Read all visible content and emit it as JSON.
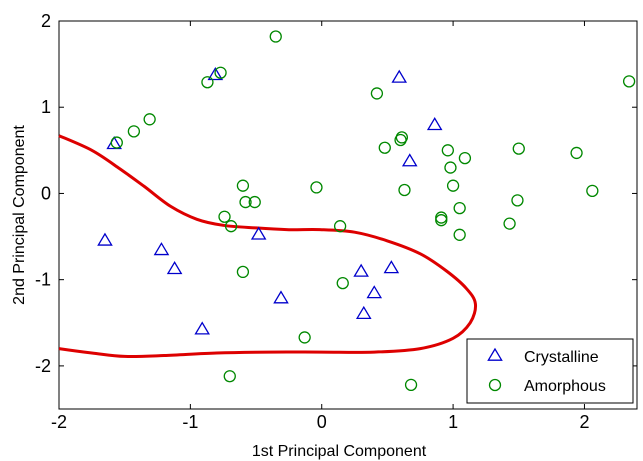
{
  "chart_data": {
    "type": "scatter",
    "title": "",
    "xlabel": "1st Principal Component",
    "ylabel": "2nd Principal Component",
    "xlim": [
      -2,
      2.4
    ],
    "ylim": [
      -2.5,
      2
    ],
    "xticks": [
      "-2",
      "-1",
      "0",
      "1",
      "2"
    ],
    "xtick_values": [
      -2,
      -1,
      0,
      1,
      2
    ],
    "yticks": [
      "-2",
      "-1",
      "0",
      "1",
      "2"
    ],
    "ytick_values": [
      -2,
      -1,
      0,
      1,
      2
    ],
    "grid": false,
    "legend_position": "bottom-right",
    "series": [
      {
        "name": "Crystalline",
        "marker": "triangle",
        "color": "#0000cc",
        "points": [
          [
            -1.65,
            -0.55
          ],
          [
            -1.58,
            0.57
          ],
          [
            -1.22,
            -0.66
          ],
          [
            -1.12,
            -0.88
          ],
          [
            -0.91,
            -1.58
          ],
          [
            -0.81,
            1.37
          ],
          [
            -0.48,
            -0.48
          ],
          [
            -0.31,
            -1.22
          ],
          [
            0.3,
            -0.91
          ],
          [
            0.32,
            -1.4
          ],
          [
            0.4,
            -1.16
          ],
          [
            0.53,
            -0.87
          ],
          [
            0.59,
            1.34
          ],
          [
            0.67,
            0.37
          ],
          [
            0.86,
            0.79
          ]
        ]
      },
      {
        "name": "Amorphous",
        "marker": "circle",
        "color": "#008800",
        "points": [
          [
            -1.56,
            0.59
          ],
          [
            -1.43,
            0.72
          ],
          [
            -1.31,
            0.86
          ],
          [
            -0.87,
            1.29
          ],
          [
            -0.77,
            1.4
          ],
          [
            -0.74,
            -0.27
          ],
          [
            -0.7,
            -2.12
          ],
          [
            -0.69,
            -0.38
          ],
          [
            -0.6,
            -0.91
          ],
          [
            -0.6,
            0.09
          ],
          [
            -0.58,
            -0.1
          ],
          [
            -0.51,
            -0.1
          ],
          [
            -0.35,
            1.82
          ],
          [
            -0.13,
            -1.67
          ],
          [
            -0.04,
            0.07
          ],
          [
            0.14,
            -0.38
          ],
          [
            0.16,
            -1.04
          ],
          [
            0.42,
            1.16
          ],
          [
            0.48,
            0.53
          ],
          [
            0.6,
            0.62
          ],
          [
            0.61,
            0.65
          ],
          [
            0.63,
            0.04
          ],
          [
            0.68,
            -2.22
          ],
          [
            0.91,
            -0.31
          ],
          [
            0.91,
            -0.28
          ],
          [
            0.96,
            0.5
          ],
          [
            0.98,
            0.3
          ],
          [
            1.0,
            0.09
          ],
          [
            1.05,
            -0.48
          ],
          [
            1.05,
            -0.17
          ],
          [
            1.09,
            0.41
          ],
          [
            1.43,
            -0.35
          ],
          [
            1.49,
            -0.08
          ],
          [
            1.5,
            0.52
          ],
          [
            1.94,
            0.47
          ],
          [
            2.06,
            0.03
          ],
          [
            2.34,
            1.3
          ]
        ]
      }
    ],
    "boundary": {
      "color": "#dd0000",
      "points": [
        [
          -2.0,
          0.67
        ],
        [
          -1.75,
          0.5
        ],
        [
          -1.55,
          0.3
        ],
        [
          -1.35,
          0.08
        ],
        [
          -1.15,
          -0.15
        ],
        [
          -0.95,
          -0.3
        ],
        [
          -0.75,
          -0.37
        ],
        [
          -0.5,
          -0.4
        ],
        [
          -0.25,
          -0.42
        ],
        [
          0.0,
          -0.42
        ],
        [
          0.25,
          -0.45
        ],
        [
          0.5,
          -0.55
        ],
        [
          0.75,
          -0.7
        ],
        [
          0.95,
          -0.9
        ],
        [
          1.1,
          -1.1
        ],
        [
          1.17,
          -1.28
        ],
        [
          1.13,
          -1.5
        ],
        [
          1.0,
          -1.68
        ],
        [
          0.75,
          -1.8
        ],
        [
          0.4,
          -1.84
        ],
        [
          0.0,
          -1.84
        ],
        [
          -0.4,
          -1.84
        ],
        [
          -0.8,
          -1.85
        ],
        [
          -1.2,
          -1.88
        ],
        [
          -1.5,
          -1.89
        ],
        [
          -1.75,
          -1.85
        ],
        [
          -2.0,
          -1.8
        ]
      ]
    }
  }
}
